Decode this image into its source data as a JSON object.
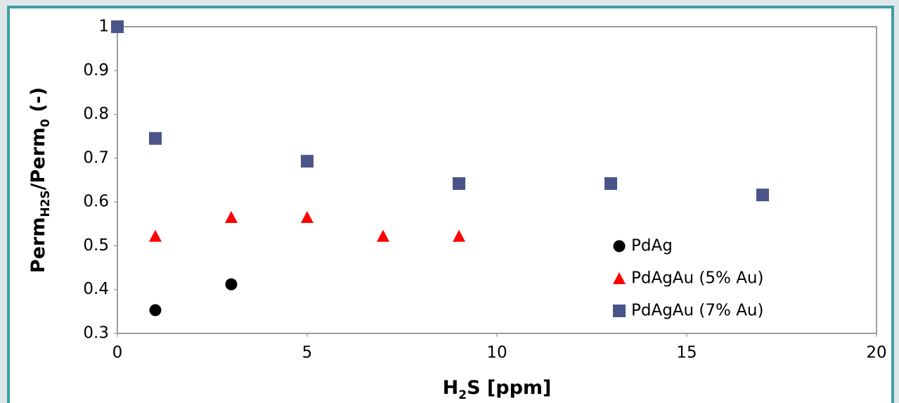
{
  "chart_data": {
    "type": "scatter",
    "x_label_parts": [
      {
        "text": "H"
      },
      {
        "text": "2",
        "sub": true
      },
      {
        "text": "S [ppm]"
      }
    ],
    "y_label_parts": [
      {
        "text": "Perm"
      },
      {
        "text": "H2S",
        "sub": true
      },
      {
        "text": "/Perm"
      },
      {
        "text": "0",
        "sub": true
      },
      {
        "text": " (-)"
      }
    ],
    "xlim": [
      0,
      20
    ],
    "xticks": [
      0,
      5,
      10,
      15,
      20
    ],
    "ylim": [
      0.3,
      1
    ],
    "yticks": [
      0.3,
      0.4,
      0.5,
      0.6,
      0.7,
      0.8,
      0.9,
      1
    ],
    "legend": "center right",
    "series": [
      {
        "name": "PdAg",
        "color": "#000000",
        "marker": "circle",
        "x": [
          1,
          3
        ],
        "values": [
          0.353,
          0.412
        ]
      },
      {
        "name": "PdAgAu (5% Au)",
        "color": "#ff0000",
        "marker": "triangle",
        "x": [
          1,
          3,
          5,
          7,
          9
        ],
        "values": [
          0.522,
          0.565,
          0.565,
          0.522,
          0.522
        ]
      },
      {
        "name": "PdAgAu (7% Au)",
        "color": "#4a5488",
        "marker": "square",
        "x": [
          0,
          1,
          5,
          9,
          13,
          17
        ],
        "values": [
          1,
          0.745,
          0.693,
          0.642,
          0.642,
          0.616
        ]
      }
    ]
  }
}
